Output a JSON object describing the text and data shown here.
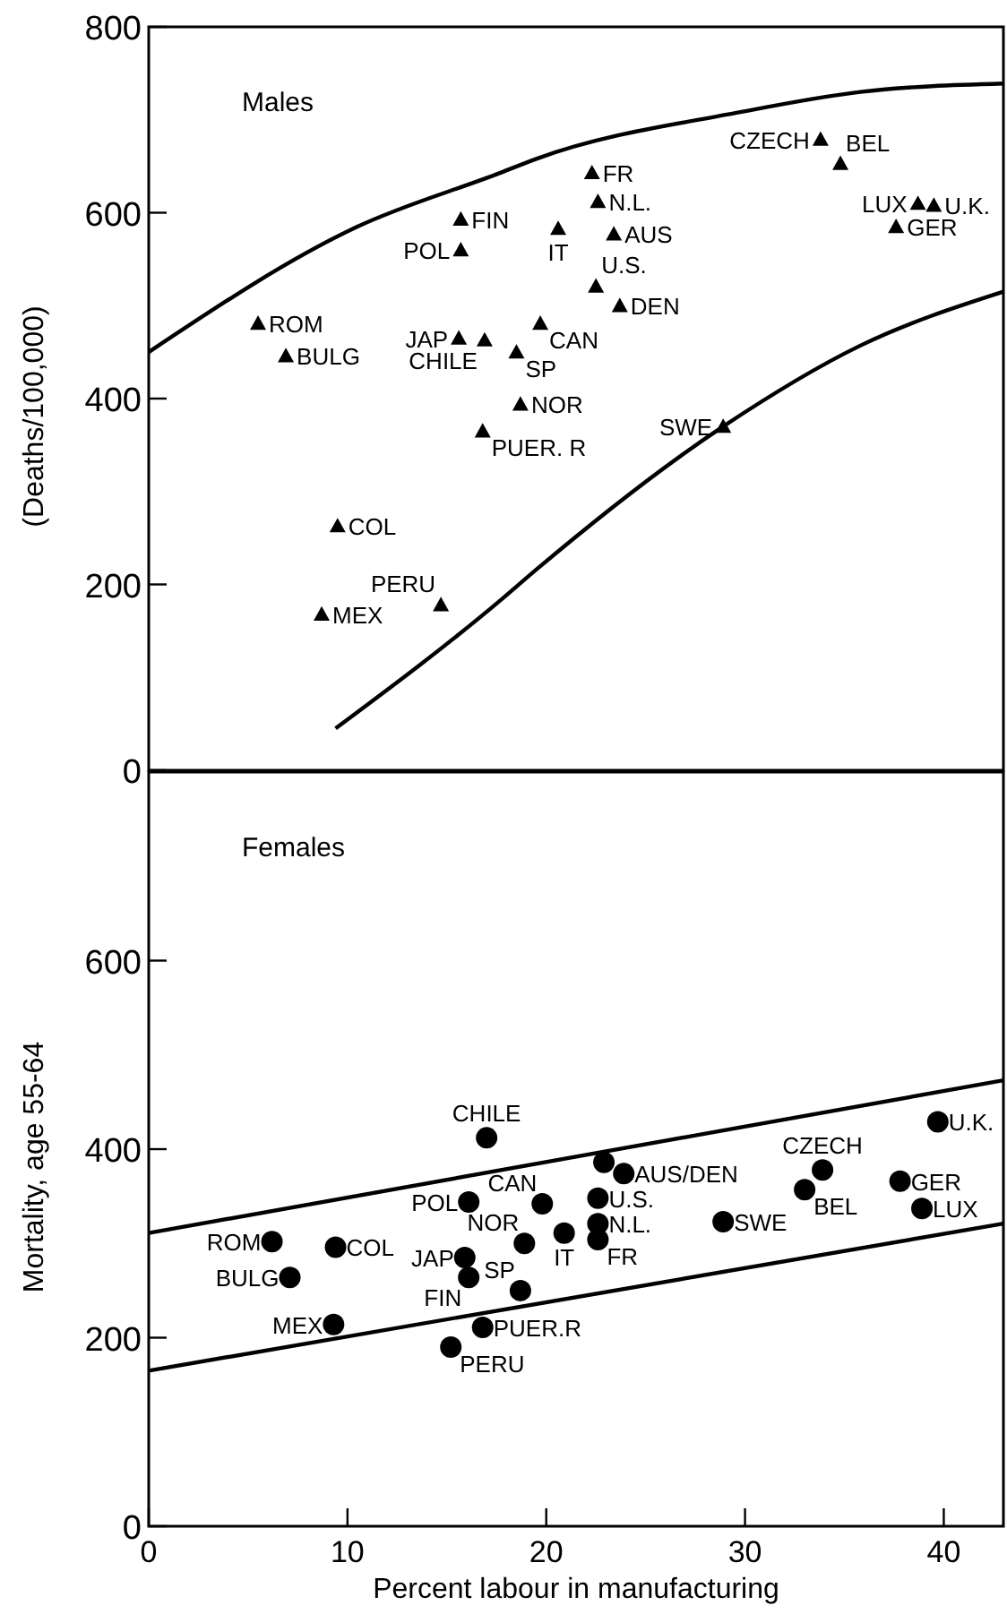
{
  "chart_data": [
    {
      "type": "scatter",
      "title": "Males",
      "ylabel": "(Deaths/100,000)",
      "xlim": [
        0,
        43
      ],
      "ylim": [
        0,
        800
      ],
      "yticks": [
        0,
        200,
        400,
        600,
        800
      ],
      "tick_labels": "y",
      "grid": false,
      "marker": "triangle",
      "series": [
        {
          "color": "#000000",
          "x": [
            5.5,
            6.9,
            9.5,
            8.7,
            15.7,
            15.6,
            15.7,
            18.7,
            18.5,
            16.9,
            16.8,
            14.7,
            19.7,
            23.4,
            23.7,
            22.5,
            22.6,
            20.6,
            22.3,
            28.9,
            33.8,
            34.8,
            37.6,
            38.7,
            39.5
          ],
          "values": [
            481,
            446,
            263,
            168,
            560,
            465,
            593,
            394,
            450,
            463,
            365,
            178,
            481,
            577,
            500,
            521,
            612,
            583,
            643,
            370,
            679,
            653,
            585,
            610,
            608
          ]
        },
        {
          "type": "line",
          "color": "#000000",
          "marker": "none",
          "line_style": "solid",
          "x": [
            0,
            10.5,
            17.7,
            19.5,
            29.7,
            35.8,
            43
          ],
          "values": [
            450,
            585,
            643,
            658,
            708,
            730,
            739
          ]
        },
        {
          "type": "line",
          "color": "#000000",
          "marker": "none",
          "line_style": "solid",
          "x": [
            9.4,
            17.7,
            19.5,
            28.9,
            35.8,
            43
          ],
          "values": [
            45,
            183,
            216,
            370,
            457,
            515
          ]
        }
      ],
      "annotations": [
        {
          "text": "ROM",
          "x": 5.5,
          "y": 481
        },
        {
          "text": "BULG",
          "x": 6.9,
          "y": 446
        },
        {
          "text": "COL",
          "x": 9.5,
          "y": 263
        },
        {
          "text": "MEX",
          "x": 8.7,
          "y": 168
        },
        {
          "text": "POL",
          "x": 15.7,
          "y": 560
        },
        {
          "text": "JAP",
          "x": 15.6,
          "y": 465
        },
        {
          "text": "FIN",
          "x": 15.7,
          "y": 593
        },
        {
          "text": "NOR",
          "x": 18.7,
          "y": 394
        },
        {
          "text": "SP",
          "x": 18.5,
          "y": 450
        },
        {
          "text": "CHILE",
          "x": 16.9,
          "y": 463
        },
        {
          "text": "PUER. R",
          "x": 16.8,
          "y": 365
        },
        {
          "text": "PERU",
          "x": 14.7,
          "y": 178
        },
        {
          "text": "CAN",
          "x": 19.7,
          "y": 481
        },
        {
          "text": "AUS",
          "x": 23.4,
          "y": 577
        },
        {
          "text": "DEN",
          "x": 23.7,
          "y": 500
        },
        {
          "text": "U.S.",
          "x": 22.5,
          "y": 521
        },
        {
          "text": "N.L.",
          "x": 22.6,
          "y": 612
        },
        {
          "text": "IT",
          "x": 20.6,
          "y": 583
        },
        {
          "text": "FR",
          "x": 22.3,
          "y": 643
        },
        {
          "text": "SWE",
          "x": 28.9,
          "y": 370
        },
        {
          "text": "CZECH",
          "x": 33.8,
          "y": 679
        },
        {
          "text": "BEL",
          "x": 34.8,
          "y": 653
        },
        {
          "text": "GER",
          "x": 37.6,
          "y": 585
        },
        {
          "text": "LUX",
          "x": 38.7,
          "y": 610
        },
        {
          "text": "U.K.",
          "x": 39.5,
          "y": 608
        }
      ]
    },
    {
      "type": "scatter",
      "title": "Females",
      "ylabel": "Mortality, age 55-64",
      "xlabel": "Percent labour in manufacturing",
      "xlim": [
        0,
        43
      ],
      "ylim": [
        0,
        800
      ],
      "xticks": [
        0,
        10,
        20,
        30,
        40
      ],
      "yticks": [
        0,
        200,
        400,
        600
      ],
      "grid": false,
      "marker": "circle",
      "series": [
        {
          "color": "#000000",
          "x": [
            6.2,
            7.1,
            9.4,
            9.3,
            16.1,
            15.9,
            16.1,
            18.9,
            18.7,
            17.0,
            16.8,
            15.2,
            19.8,
            22.9,
            23.9,
            22.6,
            22.6,
            20.9,
            22.6,
            28.9,
            33.9,
            33.0,
            37.8,
            38.9,
            39.7
          ],
          "values": [
            302,
            264,
            296,
            214,
            344,
            285,
            264,
            300,
            250,
            412,
            211,
            190,
            342,
            386,
            374,
            348,
            321,
            311,
            304,
            323,
            378,
            357,
            366,
            337,
            429
          ]
        },
        {
          "type": "line",
          "color": "#000000",
          "marker": "none",
          "line_style": "solid",
          "x": [
            0,
            43
          ],
          "values": [
            311,
            473
          ]
        },
        {
          "type": "line",
          "color": "#000000",
          "marker": "none",
          "line_style": "solid",
          "x": [
            0,
            43
          ],
          "values": [
            165,
            321
          ]
        }
      ],
      "annotations": [
        {
          "text": "ROM",
          "x": 6.2,
          "y": 302
        },
        {
          "text": "BULG",
          "x": 7.1,
          "y": 264
        },
        {
          "text": "COL",
          "x": 9.4,
          "y": 296
        },
        {
          "text": "MEX",
          "x": 9.3,
          "y": 214
        },
        {
          "text": "POL",
          "x": 16.1,
          "y": 344
        },
        {
          "text": "JAP",
          "x": 15.9,
          "y": 285
        },
        {
          "text": "FIN",
          "x": 16.1,
          "y": 264
        },
        {
          "text": "NOR",
          "x": 18.9,
          "y": 300
        },
        {
          "text": "SP",
          "x": 18.7,
          "y": 250
        },
        {
          "text": "CHILE",
          "x": 17.0,
          "y": 412
        },
        {
          "text": "PUER.R",
          "x": 16.8,
          "y": 211
        },
        {
          "text": "PERU",
          "x": 15.2,
          "y": 190
        },
        {
          "text": "CAN",
          "x": 19.8,
          "y": 342
        },
        {
          "text": "AUS/DEN",
          "x": 23.9,
          "y": 374
        },
        {
          "text": "U.S.",
          "x": 22.6,
          "y": 348
        },
        {
          "text": "N.L.",
          "x": 22.6,
          "y": 321
        },
        {
          "text": "IT",
          "x": 20.9,
          "y": 311
        },
        {
          "text": "FR",
          "x": 22.6,
          "y": 304
        },
        {
          "text": "SWE",
          "x": 28.9,
          "y": 323
        },
        {
          "text": "CZECH",
          "x": 33.9,
          "y": 378
        },
        {
          "text": "BEL",
          "x": 33.0,
          "y": 357
        },
        {
          "text": "GER",
          "x": 37.8,
          "y": 366
        },
        {
          "text": "LUX",
          "x": 38.9,
          "y": 337
        },
        {
          "text": "U.K.",
          "x": 39.7,
          "y": 429
        }
      ]
    }
  ]
}
